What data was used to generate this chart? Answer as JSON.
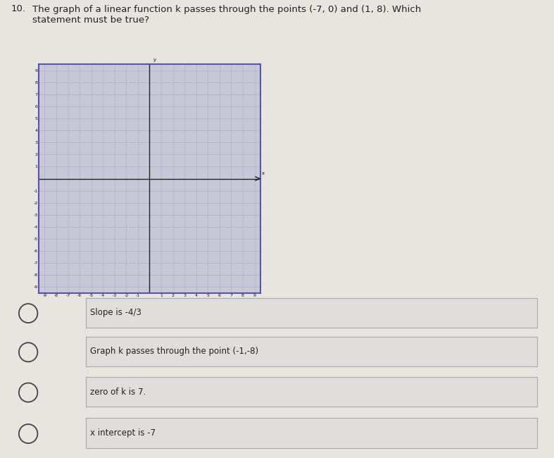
{
  "question_number": "10.",
  "question_text": "The graph of a linear function k passes through the points (-7, 0) and (1, 8). Which\nstatement must be true?",
  "graph": {
    "xlim": [
      -9.5,
      9.5
    ],
    "ylim": [
      -9.5,
      9.5
    ],
    "grid_color": "#aaaacc",
    "axis_color": "#222222",
    "background_color": "#c8c8d8",
    "border_color": "#5555aa",
    "x_label": "x",
    "y_label": "y"
  },
  "answer_choices": [
    "Slope is -4/3",
    "Graph k passes through the point (-1,-8)",
    "zero of k is 7.",
    "x intercept is -7"
  ],
  "page_background": "#e8e5e0",
  "text_color": "#222222",
  "choice_box_color": "#e0dedd",
  "choice_box_border": "#aaaaaa",
  "circle_color": "#444444",
  "font_size_question": 9.5,
  "font_size_choices": 8.5
}
